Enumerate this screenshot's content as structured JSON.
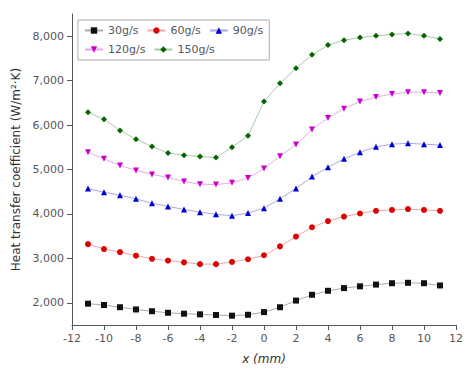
{
  "chart_data": {
    "type": "line",
    "xlabel": "x (mm)",
    "ylabel": "Heat transfer coefficient (W/m²·K)",
    "xlim": [
      -12,
      12
    ],
    "ylim": [
      1500,
      8500
    ],
    "xticks": [
      -12,
      -10,
      -8,
      -6,
      -4,
      -2,
      0,
      2,
      4,
      6,
      8,
      10,
      12
    ],
    "yticks": [
      2000,
      3000,
      4000,
      5000,
      6000,
      7000,
      8000
    ],
    "grid": false,
    "legend": "upper left",
    "x": [
      -11,
      -10,
      -9,
      -8,
      -7,
      -6,
      -5,
      -4,
      -3,
      -2,
      -1,
      0,
      1,
      2,
      3,
      4,
      5,
      6,
      7,
      8,
      9,
      10,
      11
    ],
    "series": [
      {
        "name": "30g/s",
        "color": "#111111",
        "marker": "square",
        "values": [
          1980,
          1950,
          1900,
          1850,
          1810,
          1775,
          1755,
          1740,
          1725,
          1710,
          1730,
          1790,
          1900,
          2050,
          2180,
          2270,
          2330,
          2370,
          2410,
          2440,
          2450,
          2440,
          2390
        ]
      },
      {
        "name": "60g/s",
        "color": "#dd0000",
        "marker": "circle",
        "values": [
          3320,
          3210,
          3140,
          3060,
          2990,
          2950,
          2910,
          2870,
          2870,
          2920,
          2980,
          3070,
          3270,
          3490,
          3700,
          3840,
          3940,
          4010,
          4070,
          4090,
          4110,
          4090,
          4070
        ]
      },
      {
        "name": "90g/s",
        "color": "#0000cc",
        "marker": "triangle_up",
        "values": [
          4570,
          4490,
          4420,
          4340,
          4240,
          4170,
          4100,
          4040,
          3990,
          3960,
          4020,
          4130,
          4340,
          4570,
          4840,
          5050,
          5240,
          5390,
          5510,
          5570,
          5590,
          5570,
          5550
        ]
      },
      {
        "name": "120g/s",
        "color": "#cc00cc",
        "marker": "triangle_down",
        "values": [
          5390,
          5240,
          5090,
          4980,
          4890,
          4820,
          4730,
          4670,
          4660,
          4700,
          4810,
          5020,
          5300,
          5560,
          5900,
          6160,
          6370,
          6530,
          6630,
          6700,
          6740,
          6740,
          6720
        ]
      },
      {
        "name": "150g/s",
        "color": "#006600",
        "marker": "diamond",
        "values": [
          6290,
          6130,
          5880,
          5680,
          5520,
          5370,
          5320,
          5290,
          5270,
          5500,
          5760,
          6530,
          6940,
          7280,
          7580,
          7800,
          7910,
          7970,
          8010,
          8040,
          8060,
          8010,
          7940
        ]
      }
    ]
  }
}
